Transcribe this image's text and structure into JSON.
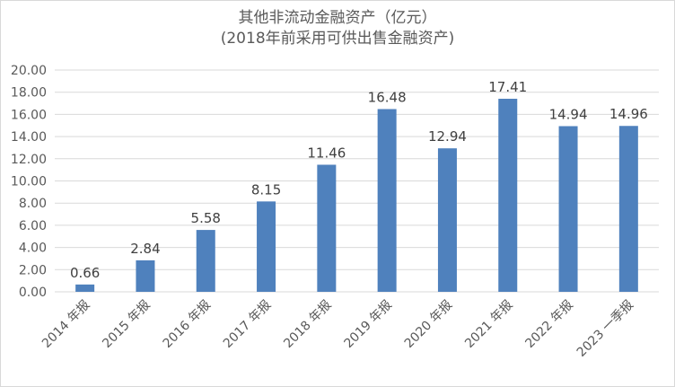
{
  "chart_data": {
    "type": "bar",
    "title": "其他非流动金融资产（亿元）",
    "subtitle": "(2018年前采用可供出售金融资产)",
    "categories": [
      "2014 年报",
      "2015 年报",
      "2016 年报",
      "2017 年报",
      "2018 年报",
      "2019 年报",
      "2020 年报",
      "2021 年报",
      "2022 年报",
      "2023 一季报"
    ],
    "values": [
      0.66,
      2.84,
      5.58,
      8.15,
      11.46,
      16.48,
      12.94,
      17.41,
      14.94,
      14.96
    ],
    "value_labels": [
      "0.66",
      "2.84",
      "5.58",
      "8.15",
      "11.46",
      "16.48",
      "12.94",
      "17.41",
      "14.94",
      "14.96"
    ],
    "y_ticks": [
      "0.00",
      "2.00",
      "4.00",
      "6.00",
      "8.00",
      "10.00",
      "12.00",
      "14.00",
      "16.00",
      "18.00",
      "20.00"
    ],
    "ylim": [
      0,
      20
    ],
    "grid": true,
    "legend": "none",
    "colors": {
      "bar": "#4f81bd",
      "grid": "#d9d9d9",
      "text": "#595959"
    }
  }
}
